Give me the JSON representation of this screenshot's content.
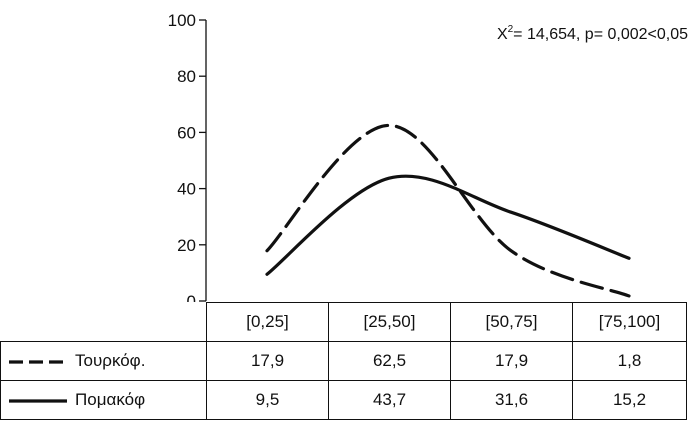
{
  "chart_data": {
    "type": "line",
    "categories": [
      "[0,25]",
      "[25,50]",
      "[50,75]",
      "[75,100]"
    ],
    "series": [
      {
        "name": "Τουρκόφ.",
        "values": [
          17.9,
          62.5,
          17.9,
          1.8
        ],
        "labels": [
          "17,9",
          "62,5",
          "17,9",
          "1,8"
        ],
        "style": "dashed"
      },
      {
        "name": "Πομακόφ",
        "values": [
          9.5,
          43.7,
          31.6,
          15.2
        ],
        "labels": [
          "9,5",
          "43,7",
          "31,6",
          "15,2"
        ],
        "style": "solid"
      }
    ],
    "ylim": [
      0,
      100
    ],
    "yticks": [
      "0",
      "20",
      "40",
      "60",
      "80",
      "100"
    ],
    "annotation": {
      "chi": "X",
      "sup": "2",
      "rest": "= 14,654,  p= 0,002<0,05"
    },
    "grid": false,
    "legend": "table-below",
    "line_color": "#111111"
  }
}
